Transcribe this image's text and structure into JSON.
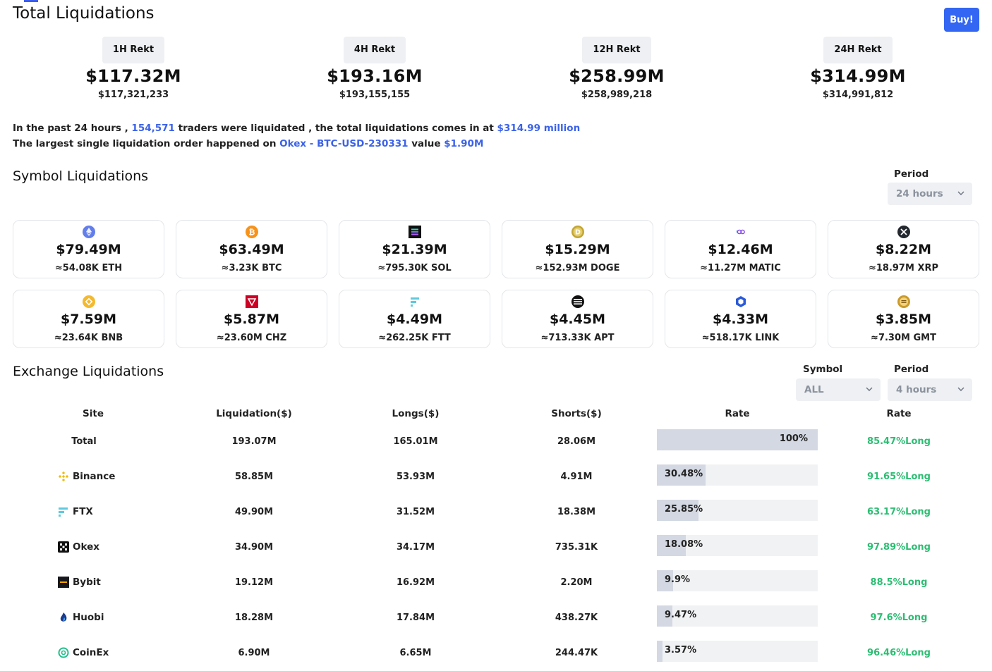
{
  "header": {
    "title": "Total Liquidations",
    "buy_label": "Buy!"
  },
  "rekt": [
    {
      "label": "1H Rekt",
      "amount": "$117.32M",
      "exact": "$117,321,233"
    },
    {
      "label": "4H Rekt",
      "amount": "$193.16M",
      "exact": "$193,155,155"
    },
    {
      "label": "12H Rekt",
      "amount": "$258.99M",
      "exact": "$258,989,218"
    },
    {
      "label": "24H Rekt",
      "amount": "$314.99M",
      "exact": "$314,991,812"
    }
  ],
  "summary": {
    "l1_a": "In the past 24 hours , ",
    "l1_traders": "154,571",
    "l1_b": " traders were liquidated , the total liquidations comes in at ",
    "l1_total": "$314.99 million",
    "l2_a": "The largest single liquidation order happened on ",
    "l2_order": "Okex - BTC-USD-230331",
    "l2_b": " value ",
    "l2_value": "$1.90M"
  },
  "symbol_section": {
    "title": "Symbol Liquidations",
    "period_label": "Period",
    "period_value": "24 hours"
  },
  "symbols": [
    {
      "usd": "$79.49M",
      "qty": "≈54.08K ETH",
      "icon": "eth-icon"
    },
    {
      "usd": "$63.49M",
      "qty": "≈3.23K BTC",
      "icon": "btc-icon"
    },
    {
      "usd": "$21.39M",
      "qty": "≈795.30K SOL",
      "icon": "sol-icon"
    },
    {
      "usd": "$15.29M",
      "qty": "≈152.93M DOGE",
      "icon": "doge-icon"
    },
    {
      "usd": "$12.46M",
      "qty": "≈11.27M MATIC",
      "icon": "matic-icon"
    },
    {
      "usd": "$8.22M",
      "qty": "≈18.97M XRP",
      "icon": "xrp-icon"
    },
    {
      "usd": "$7.59M",
      "qty": "≈23.64K BNB",
      "icon": "bnb-icon"
    },
    {
      "usd": "$5.87M",
      "qty": "≈23.60M CHZ",
      "icon": "chz-icon"
    },
    {
      "usd": "$4.49M",
      "qty": "≈262.25K FTT",
      "icon": "ftt-icon"
    },
    {
      "usd": "$4.45M",
      "qty": "≈713.33K APT",
      "icon": "apt-icon"
    },
    {
      "usd": "$4.33M",
      "qty": "≈518.17K LINK",
      "icon": "link-icon"
    },
    {
      "usd": "$3.85M",
      "qty": "≈7.30M GMT",
      "icon": "gmt-icon"
    }
  ],
  "exchange_section": {
    "title": "Exchange Liquidations",
    "symbol_label": "Symbol",
    "symbol_value": "ALL",
    "period_label": "Period",
    "period_value": "4 hours"
  },
  "table": {
    "headers": [
      "Site",
      "Liquidation($)",
      "Longs($)",
      "Shorts($)",
      "Rate",
      "Rate"
    ],
    "rows": [
      {
        "site": "Total",
        "liq": "193.07M",
        "longs": "165.01M",
        "shorts": "28.06M",
        "rate": "100%",
        "rate_pct": 100,
        "long_rate": "85.47%Long",
        "icon": ""
      },
      {
        "site": "Binance",
        "liq": "58.85M",
        "longs": "53.93M",
        "shorts": "4.91M",
        "rate": "30.48%",
        "rate_pct": 30.48,
        "long_rate": "91.65%Long",
        "icon": "binance-icon"
      },
      {
        "site": "FTX",
        "liq": "49.90M",
        "longs": "31.52M",
        "shorts": "18.38M",
        "rate": "25.85%",
        "rate_pct": 25.85,
        "long_rate": "63.17%Long",
        "icon": "ftx-icon"
      },
      {
        "site": "Okex",
        "liq": "34.90M",
        "longs": "34.17M",
        "shorts": "735.31K",
        "rate": "18.08%",
        "rate_pct": 18.08,
        "long_rate": "97.89%Long",
        "icon": "okex-icon"
      },
      {
        "site": "Bybit",
        "liq": "19.12M",
        "longs": "16.92M",
        "shorts": "2.20M",
        "rate": "9.9%",
        "rate_pct": 9.9,
        "long_rate": "88.5%Long",
        "icon": "bybit-icon"
      },
      {
        "site": "Huobi",
        "liq": "18.28M",
        "longs": "17.84M",
        "shorts": "438.27K",
        "rate": "9.47%",
        "rate_pct": 9.47,
        "long_rate": "97.6%Long",
        "icon": "huobi-icon"
      },
      {
        "site": "CoinEx",
        "liq": "6.90M",
        "longs": "6.65M",
        "shorts": "244.47K",
        "rate": "3.57%",
        "rate_pct": 3.57,
        "long_rate": "96.46%Long",
        "icon": "coinex-icon"
      }
    ]
  },
  "colors": {
    "accent": "#3b62e8",
    "button": "#3366f2",
    "long_green": "#2dbd73",
    "bar_fill": "#d3d8e2",
    "bar_track": "#f1f2f4"
  }
}
